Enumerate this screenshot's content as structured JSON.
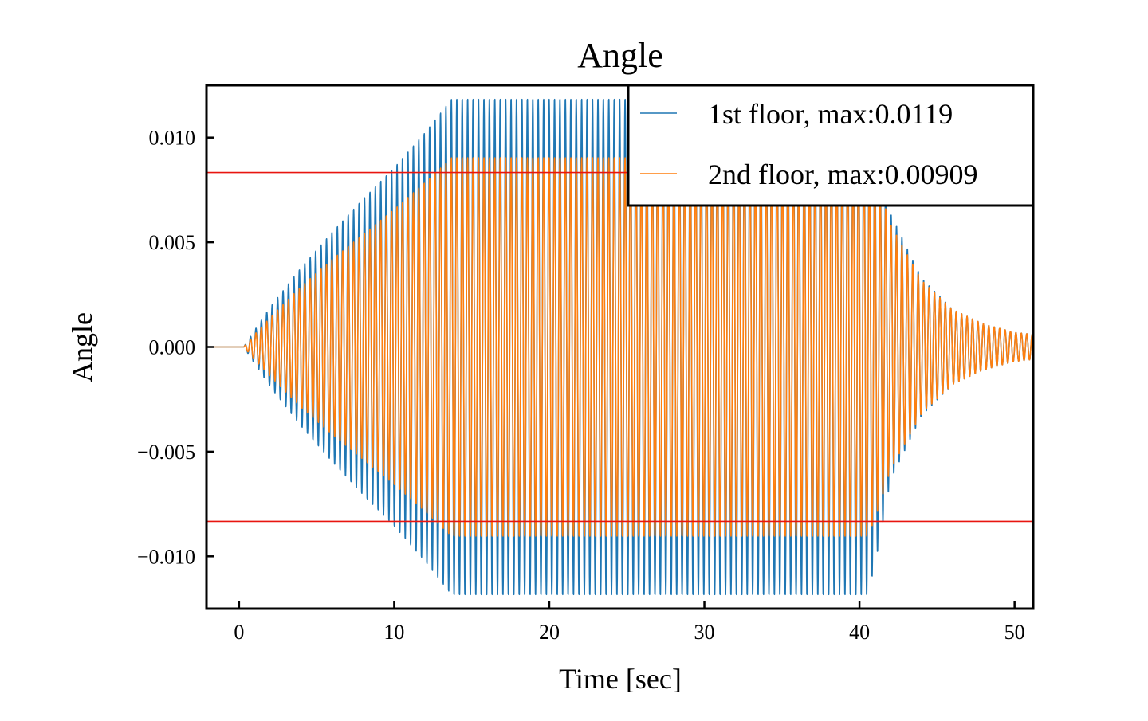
{
  "chart_data": {
    "type": "line",
    "title": "Angle",
    "xlabel": "Time [sec]",
    "ylabel": "Angle",
    "xlim": [
      -2.1,
      51.2
    ],
    "ylim": [
      -0.0125,
      0.0125
    ],
    "xticks": [
      0,
      10,
      20,
      30,
      40,
      50
    ],
    "xtick_labels": [
      "0",
      "10",
      "20",
      "30",
      "40",
      "50"
    ],
    "yticks": [
      -0.01,
      -0.005,
      0.0,
      0.005,
      0.01
    ],
    "ytick_labels": [
      "−0.010",
      "−0.005",
      "0.000",
      "0.005",
      "0.010"
    ],
    "grid": false,
    "legend_position": "top-right",
    "threshold_lines": {
      "values": [
        0.00833,
        -0.00833
      ],
      "color": "#e8150f"
    },
    "series": [
      {
        "name": "1st floor, max:0.0119",
        "color": "#1f77b4",
        "oscillation_period_sec": 0.35,
        "envelope_t": [
          0.3,
          1.0,
          2.0,
          4.0,
          6.0,
          8.0,
          10.0,
          12.0,
          13.7,
          40.5,
          41.0,
          42.0,
          44.0,
          46.0,
          48.0,
          50.0,
          51.2
        ],
        "envelope_a": [
          0.0,
          0.0008,
          0.0019,
          0.0038,
          0.0055,
          0.0071,
          0.0086,
          0.0103,
          0.0119,
          0.0119,
          0.0105,
          0.0064,
          0.0033,
          0.0018,
          0.0011,
          0.0007,
          0.0006
        ]
      },
      {
        "name": "2nd floor, max:0.00909",
        "color": "#ff7f0e",
        "oscillation_period_sec": 0.35,
        "envelope_t": [
          0.3,
          1.0,
          2.0,
          4.0,
          6.0,
          8.0,
          10.0,
          12.0,
          13.7,
          40.5,
          41.0,
          42.0,
          44.0,
          46.0,
          48.0,
          50.0,
          51.2
        ],
        "envelope_a": [
          0.0,
          0.0006,
          0.0014,
          0.0029,
          0.0042,
          0.0054,
          0.0066,
          0.0079,
          0.00909,
          0.00909,
          0.0083,
          0.0059,
          0.0032,
          0.0018,
          0.0011,
          0.0007,
          0.0006
        ]
      }
    ]
  }
}
